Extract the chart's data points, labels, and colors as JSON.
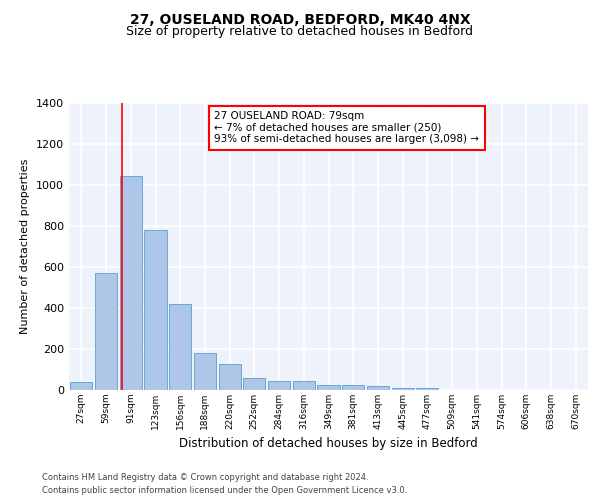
{
  "title1": "27, OUSELAND ROAD, BEDFORD, MK40 4NX",
  "title2": "Size of property relative to detached houses in Bedford",
  "xlabel": "Distribution of detached houses by size in Bedford",
  "ylabel": "Number of detached properties",
  "bar_labels": [
    "27sqm",
    "59sqm",
    "91sqm",
    "123sqm",
    "156sqm",
    "188sqm",
    "220sqm",
    "252sqm",
    "284sqm",
    "316sqm",
    "349sqm",
    "381sqm",
    "413sqm",
    "445sqm",
    "477sqm",
    "509sqm",
    "541sqm",
    "574sqm",
    "606sqm",
    "638sqm",
    "670sqm"
  ],
  "bar_values": [
    40,
    570,
    1040,
    780,
    420,
    180,
    125,
    60,
    45,
    42,
    25,
    22,
    18,
    10,
    8,
    0,
    0,
    0,
    0,
    0,
    0
  ],
  "bar_color": "#aec6e8",
  "bar_edge_color": "#5a9fd4",
  "annotation_text": "27 OUSELAND ROAD: 79sqm\n← 7% of detached houses are smaller (250)\n93% of semi-detached houses are larger (3,098) →",
  "ylim": [
    0,
    1400
  ],
  "yticks": [
    0,
    200,
    400,
    600,
    800,
    1000,
    1200,
    1400
  ],
  "footer1": "Contains HM Land Registry data © Crown copyright and database right 2024.",
  "footer2": "Contains public sector information licensed under the Open Government Licence v3.0.",
  "bg_color": "#eef2fb",
  "grid_color": "white",
  "title1_fontsize": 10,
  "title2_fontsize": 9
}
